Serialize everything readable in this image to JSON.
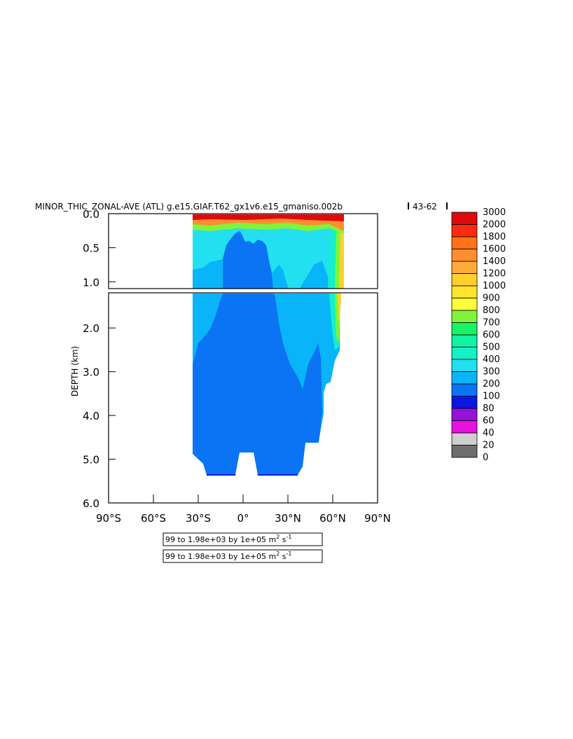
{
  "chart_data": {
    "type": "heatmap",
    "title": "MINOR_THIC_ZONAL-AVE (ATL) g.e15.GIAF.T62_gx1v6.e15_gmaniso.002b",
    "title_suffix": "43-62",
    "ylabel": "DEPTH (km)",
    "xlabel": "",
    "x_ticks": [
      "90°S",
      "60°S",
      "30°S",
      "0°",
      "30°N",
      "60°N",
      "90°N"
    ],
    "x_range": [
      -90,
      90
    ],
    "upper_panel": {
      "y_range": [
        0.0,
        1.1
      ],
      "y_ticks": [
        "0.0",
        "0.5",
        "1.0"
      ],
      "y_tick_values": [
        0.0,
        0.5,
        1.0
      ]
    },
    "lower_panel": {
      "y_range": [
        1.1,
        6.0
      ],
      "y_ticks": [
        "2.0",
        "3.0",
        "4.0",
        "5.0",
        "6.0"
      ],
      "y_tick_values": [
        2.0,
        3.0,
        4.0,
        5.0,
        6.0
      ]
    },
    "colorbar": {
      "levels": [
        "0",
        "20",
        "40",
        "60",
        "80",
        "100",
        "200",
        "300",
        "400",
        "500",
        "600",
        "700",
        "800",
        "900",
        "1000",
        "1200",
        "1400",
        "1600",
        "1800",
        "2000",
        "3000"
      ],
      "colors": [
        "#6e6e6e",
        "#cfcfcf",
        "#ea10e0",
        "#9612d8",
        "#0a16e2",
        "#0a74f4",
        "#0ab4f8",
        "#22e0f0",
        "#14f0c8",
        "#10f2a4",
        "#16f464",
        "#80f43a",
        "#ffff3c",
        "#ffe42e",
        "#ffd02c",
        "#ffac3a",
        "#ff8e2e",
        "#ff7218",
        "#ff2a10",
        "#e00a0a",
        "#b4080a"
      ]
    },
    "legend_placement": "right",
    "grid": false
  },
  "info_boxes": [
    {
      "range": "99 to 1.98e+03 by 1e+05",
      "unit": "m",
      "exp": "2",
      "unit2": "s",
      "exp2": "-1"
    },
    {
      "range": "99 to 1.98e+03 by 1e+05",
      "unit": "m",
      "exp": "2",
      "unit2": "s",
      "exp2": "-1"
    }
  ]
}
